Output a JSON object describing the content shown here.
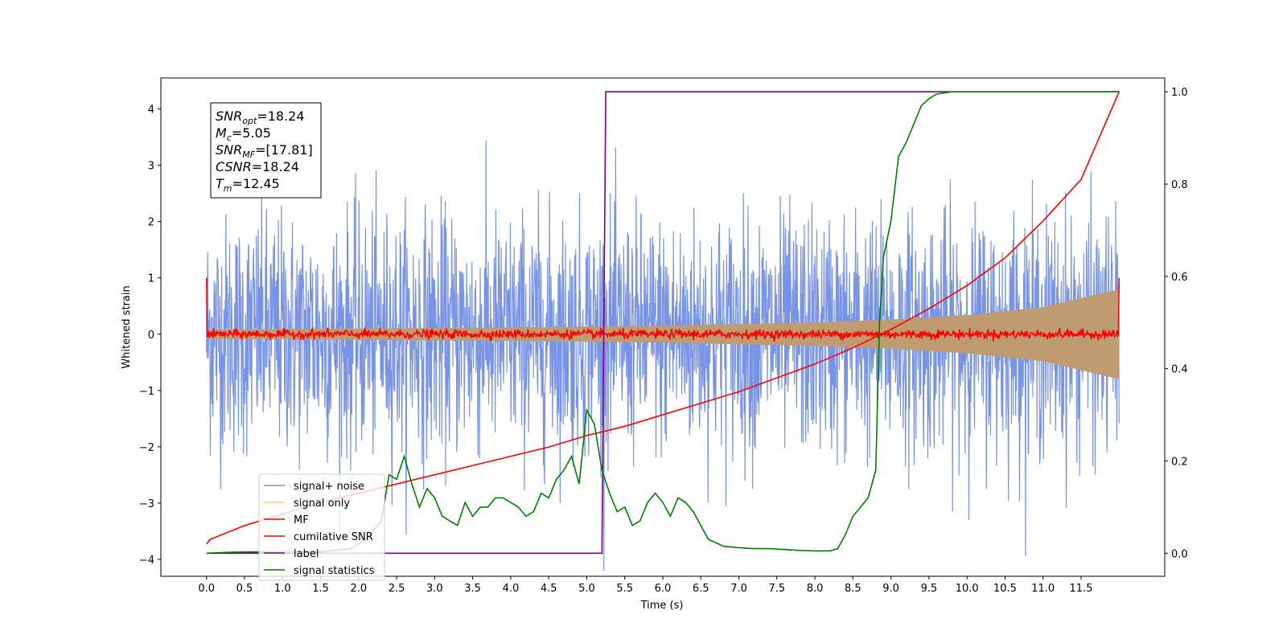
{
  "chart_data": {
    "type": "line",
    "xlabel": "Time (s)",
    "ylabel": "Whitened strain",
    "xlim": [
      -0.6,
      12.6
    ],
    "ylim": [
      -4.3,
      4.55
    ],
    "y2lim": [
      -0.05,
      1.03
    ],
    "x_ticks": [
      0.0,
      0.5,
      1.0,
      1.5,
      2.0,
      2.5,
      3.0,
      3.5,
      4.0,
      4.5,
      5.0,
      5.5,
      6.0,
      6.5,
      7.0,
      7.5,
      8.0,
      8.5,
      9.0,
      9.5,
      10.0,
      10.5,
      11.0,
      11.5
    ],
    "x_tick_labels": [
      "0.0",
      "0.5",
      "1.0",
      "1.5",
      "2.0",
      "2.5",
      "3.0",
      "3.5",
      "4.0",
      "4.5",
      "5.0",
      "5.5",
      "6.0",
      "6.5",
      "7.0",
      "7.5",
      "8.0",
      "8.5",
      "9.0",
      "9.5",
      "10.0",
      "10.5",
      "11.0",
      "11.5"
    ],
    "y_ticks": [
      -4,
      -3,
      -2,
      -1,
      0,
      1,
      2,
      3,
      4
    ],
    "y_tick_labels": [
      "−4",
      "−3",
      "−2",
      "−1",
      "0",
      "1",
      "2",
      "3",
      "4"
    ],
    "y2_ticks": [
      0.0,
      0.2,
      0.4,
      0.6,
      0.8,
      1.0
    ],
    "y2_tick_labels": [
      "0.0",
      "0.2",
      "0.4",
      "0.6",
      "0.8",
      "1.0"
    ],
    "grid": false,
    "legend_position": "lower-left",
    "info_box": {
      "lines": [
        {
          "main": "SNR",
          "sub": "opt",
          "rest": "=18.24"
        },
        {
          "main": "M",
          "sub": "c",
          "rest": "=5.05"
        },
        {
          "main": "SNR",
          "sub": "MF",
          "rest": "=[17.81]"
        },
        {
          "main": "CSNR",
          "sub": "",
          "rest": "=18.24"
        },
        {
          "main": "T",
          "sub": "m",
          "rest": "=12.45"
        }
      ]
    },
    "series": [
      {
        "name": "signal+ noise",
        "color": "#7794e9",
        "axis": "left",
        "kind": "noise",
        "x_range": [
          0,
          12
        ],
        "amplitude_std": 1.0,
        "max_abs": 4.2
      },
      {
        "name": "signal only",
        "color": "#bf9b71",
        "axis": "left",
        "kind": "envelope",
        "x": [
          0,
          2,
          4,
          6,
          8,
          9,
          10,
          11,
          12
        ],
        "values": [
          0.08,
          0.1,
          0.12,
          0.15,
          0.21,
          0.26,
          0.34,
          0.48,
          0.8
        ]
      },
      {
        "name": "MF",
        "color": "#ff0000",
        "axis": "left",
        "kind": "noise-small",
        "x_range": [
          0,
          12
        ],
        "edge_values": [
          1.0,
          1.0
        ],
        "amplitude_std": 0.04
      },
      {
        "name": "cumilative SNR",
        "color": "#ff0000",
        "axis": "right",
        "x": [
          0,
          0.05,
          0.5,
          1.0,
          1.5,
          2.0,
          2.5,
          3.0,
          3.5,
          4.0,
          4.5,
          5.0,
          5.5,
          6.0,
          6.5,
          7.0,
          7.5,
          8.0,
          8.5,
          9.0,
          9.5,
          10.0,
          10.5,
          11.0,
          11.5,
          12.0
        ],
        "values": [
          0.02,
          0.03,
          0.06,
          0.085,
          0.11,
          0.13,
          0.15,
          0.17,
          0.19,
          0.21,
          0.23,
          0.255,
          0.275,
          0.3,
          0.325,
          0.35,
          0.38,
          0.41,
          0.445,
          0.485,
          0.53,
          0.58,
          0.64,
          0.72,
          0.81,
          1.0
        ]
      },
      {
        "name": "label",
        "color": "#800080",
        "axis": "right",
        "x": [
          0,
          5.2,
          5.25,
          12.0
        ],
        "values": [
          0.0,
          0.0,
          1.0,
          1.0
        ]
      },
      {
        "name": "signal statistics",
        "color": "#008000",
        "axis": "right",
        "x": [
          0,
          0.3,
          0.6,
          1.0,
          1.5,
          1.9,
          2.1,
          2.3,
          2.4,
          2.5,
          2.6,
          2.7,
          2.8,
          2.9,
          3.0,
          3.1,
          3.2,
          3.3,
          3.4,
          3.5,
          3.6,
          3.7,
          3.8,
          3.9,
          4.0,
          4.1,
          4.2,
          4.3,
          4.4,
          4.5,
          4.6,
          4.7,
          4.8,
          4.9,
          5.0,
          5.1,
          5.2,
          5.3,
          5.4,
          5.5,
          5.6,
          5.7,
          5.8,
          5.9,
          6.0,
          6.1,
          6.2,
          6.3,
          6.4,
          6.5,
          6.6,
          6.8,
          7.0,
          7.2,
          7.4,
          7.6,
          7.8,
          8.0,
          8.2,
          8.3,
          8.4,
          8.5,
          8.6,
          8.7,
          8.8,
          8.85,
          8.9,
          9.0,
          9.1,
          9.2,
          9.3,
          9.4,
          9.5,
          9.6,
          9.8,
          10.0,
          10.5,
          11.0,
          12.0
        ],
        "values": [
          0.0,
          0.002,
          0.003,
          0.002,
          0.003,
          0.01,
          0.03,
          0.07,
          0.17,
          0.16,
          0.21,
          0.15,
          0.1,
          0.14,
          0.12,
          0.08,
          0.07,
          0.06,
          0.11,
          0.08,
          0.1,
          0.1,
          0.12,
          0.12,
          0.11,
          0.1,
          0.08,
          0.09,
          0.13,
          0.12,
          0.16,
          0.18,
          0.21,
          0.15,
          0.31,
          0.28,
          0.18,
          0.13,
          0.09,
          0.1,
          0.06,
          0.07,
          0.11,
          0.13,
          0.11,
          0.08,
          0.12,
          0.11,
          0.09,
          0.06,
          0.03,
          0.015,
          0.012,
          0.01,
          0.01,
          0.008,
          0.006,
          0.005,
          0.005,
          0.01,
          0.04,
          0.08,
          0.1,
          0.12,
          0.18,
          0.5,
          0.64,
          0.72,
          0.86,
          0.89,
          0.93,
          0.97,
          0.985,
          0.995,
          1.0,
          1.0,
          1.0,
          1.0,
          1.0
        ]
      }
    ]
  }
}
